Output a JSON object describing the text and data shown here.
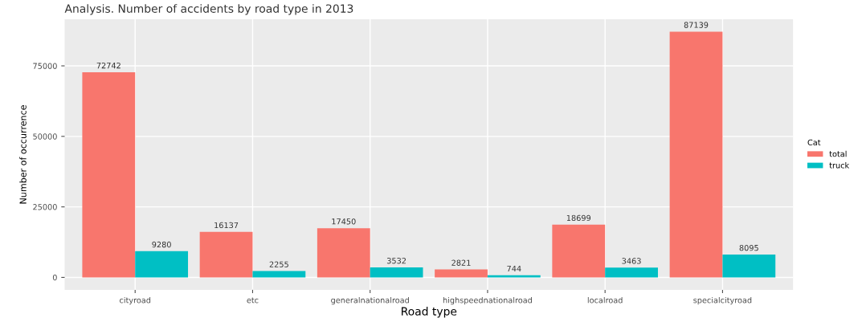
{
  "chart_data": {
    "type": "bar",
    "title": "Analysis. Number of accidents by road type in 2013",
    "xlabel": "Road type",
    "ylabel": "Number of occurrence",
    "legend_title": "Cat",
    "categories": [
      "cityroad",
      "etc",
      "generalnationalroad",
      "highspeednationalroad",
      "localroad",
      "specialcityroad"
    ],
    "series": [
      {
        "name": "total",
        "color": "#f8766d",
        "values": [
          72742,
          16137,
          17450,
          2821,
          18699,
          87139
        ]
      },
      {
        "name": "truck",
        "color": "#00bfc4",
        "values": [
          9280,
          2255,
          3532,
          744,
          3463,
          8095
        ]
      }
    ],
    "ylim": [
      -4400,
      91500
    ],
    "yticks": [
      0,
      25000,
      50000,
      75000
    ],
    "grid": true,
    "legend": "right",
    "data_labels": true
  }
}
